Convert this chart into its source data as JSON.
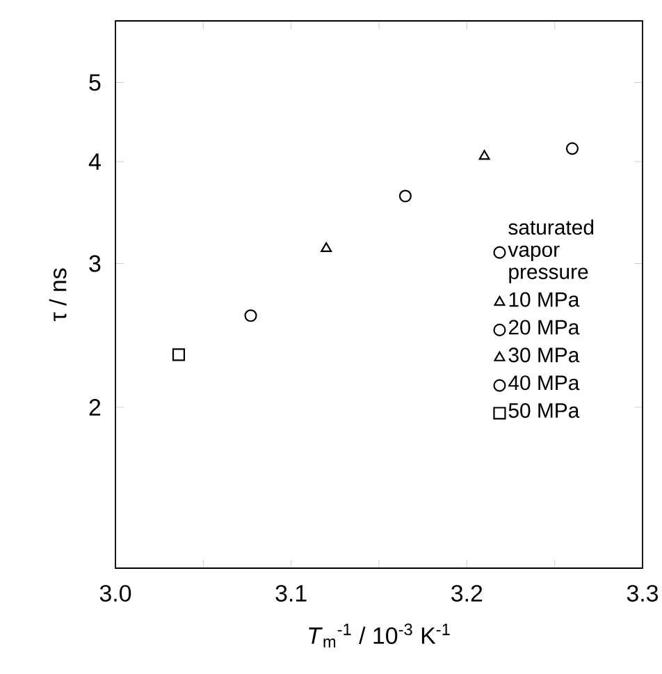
{
  "chart_data": {
    "type": "scatter",
    "xlabel": "*T*$_{m}$$^{-1}$ / 10$^{-3}$ K$^{-1}$",
    "ylabel": "τ / ns",
    "log": "y",
    "xlim": [
      3.0,
      3.3
    ],
    "ylim": [
      1.27,
      5.95
    ],
    "xticks": [
      {
        "value": 3.0,
        "label": "3.0"
      },
      {
        "value": 3.05,
        "label": null
      },
      {
        "value": 3.1,
        "label": "3.1"
      },
      {
        "value": 3.15,
        "label": null
      },
      {
        "value": 3.2,
        "label": "3.2"
      },
      {
        "value": 3.25,
        "label": null
      },
      {
        "value": 3.3,
        "label": "3.3"
      }
    ],
    "yticks": [
      2,
      3,
      4,
      5
    ],
    "grid": false,
    "legend": "right",
    "series": [
      {
        "name": "saturated vapor pressure",
        "color": "#000000",
        "marker": "circle",
        "x": [
          3.26
        ],
        "values": [
          4.15
        ]
      },
      {
        "name": "10 MPa",
        "color": "#000000",
        "marker": "triangle",
        "x": [
          3.21
        ],
        "values": [
          4.06
        ]
      },
      {
        "name": "20 MPa",
        "color": "#000000",
        "marker": "circle",
        "x": [
          3.165
        ],
        "values": [
          3.63
        ]
      },
      {
        "name": "30 MPa",
        "color": "#000000",
        "marker": "triangle",
        "x": [
          3.12
        ],
        "values": [
          3.13
        ]
      },
      {
        "name": "40 MPa",
        "color": "#000000",
        "marker": "circle",
        "x": [
          3.077
        ],
        "values": [
          2.59
        ]
      },
      {
        "name": "50 MPa",
        "color": "#000000",
        "marker": "square",
        "x": [
          3.036
        ],
        "values": [
          2.32
        ]
      }
    ]
  }
}
